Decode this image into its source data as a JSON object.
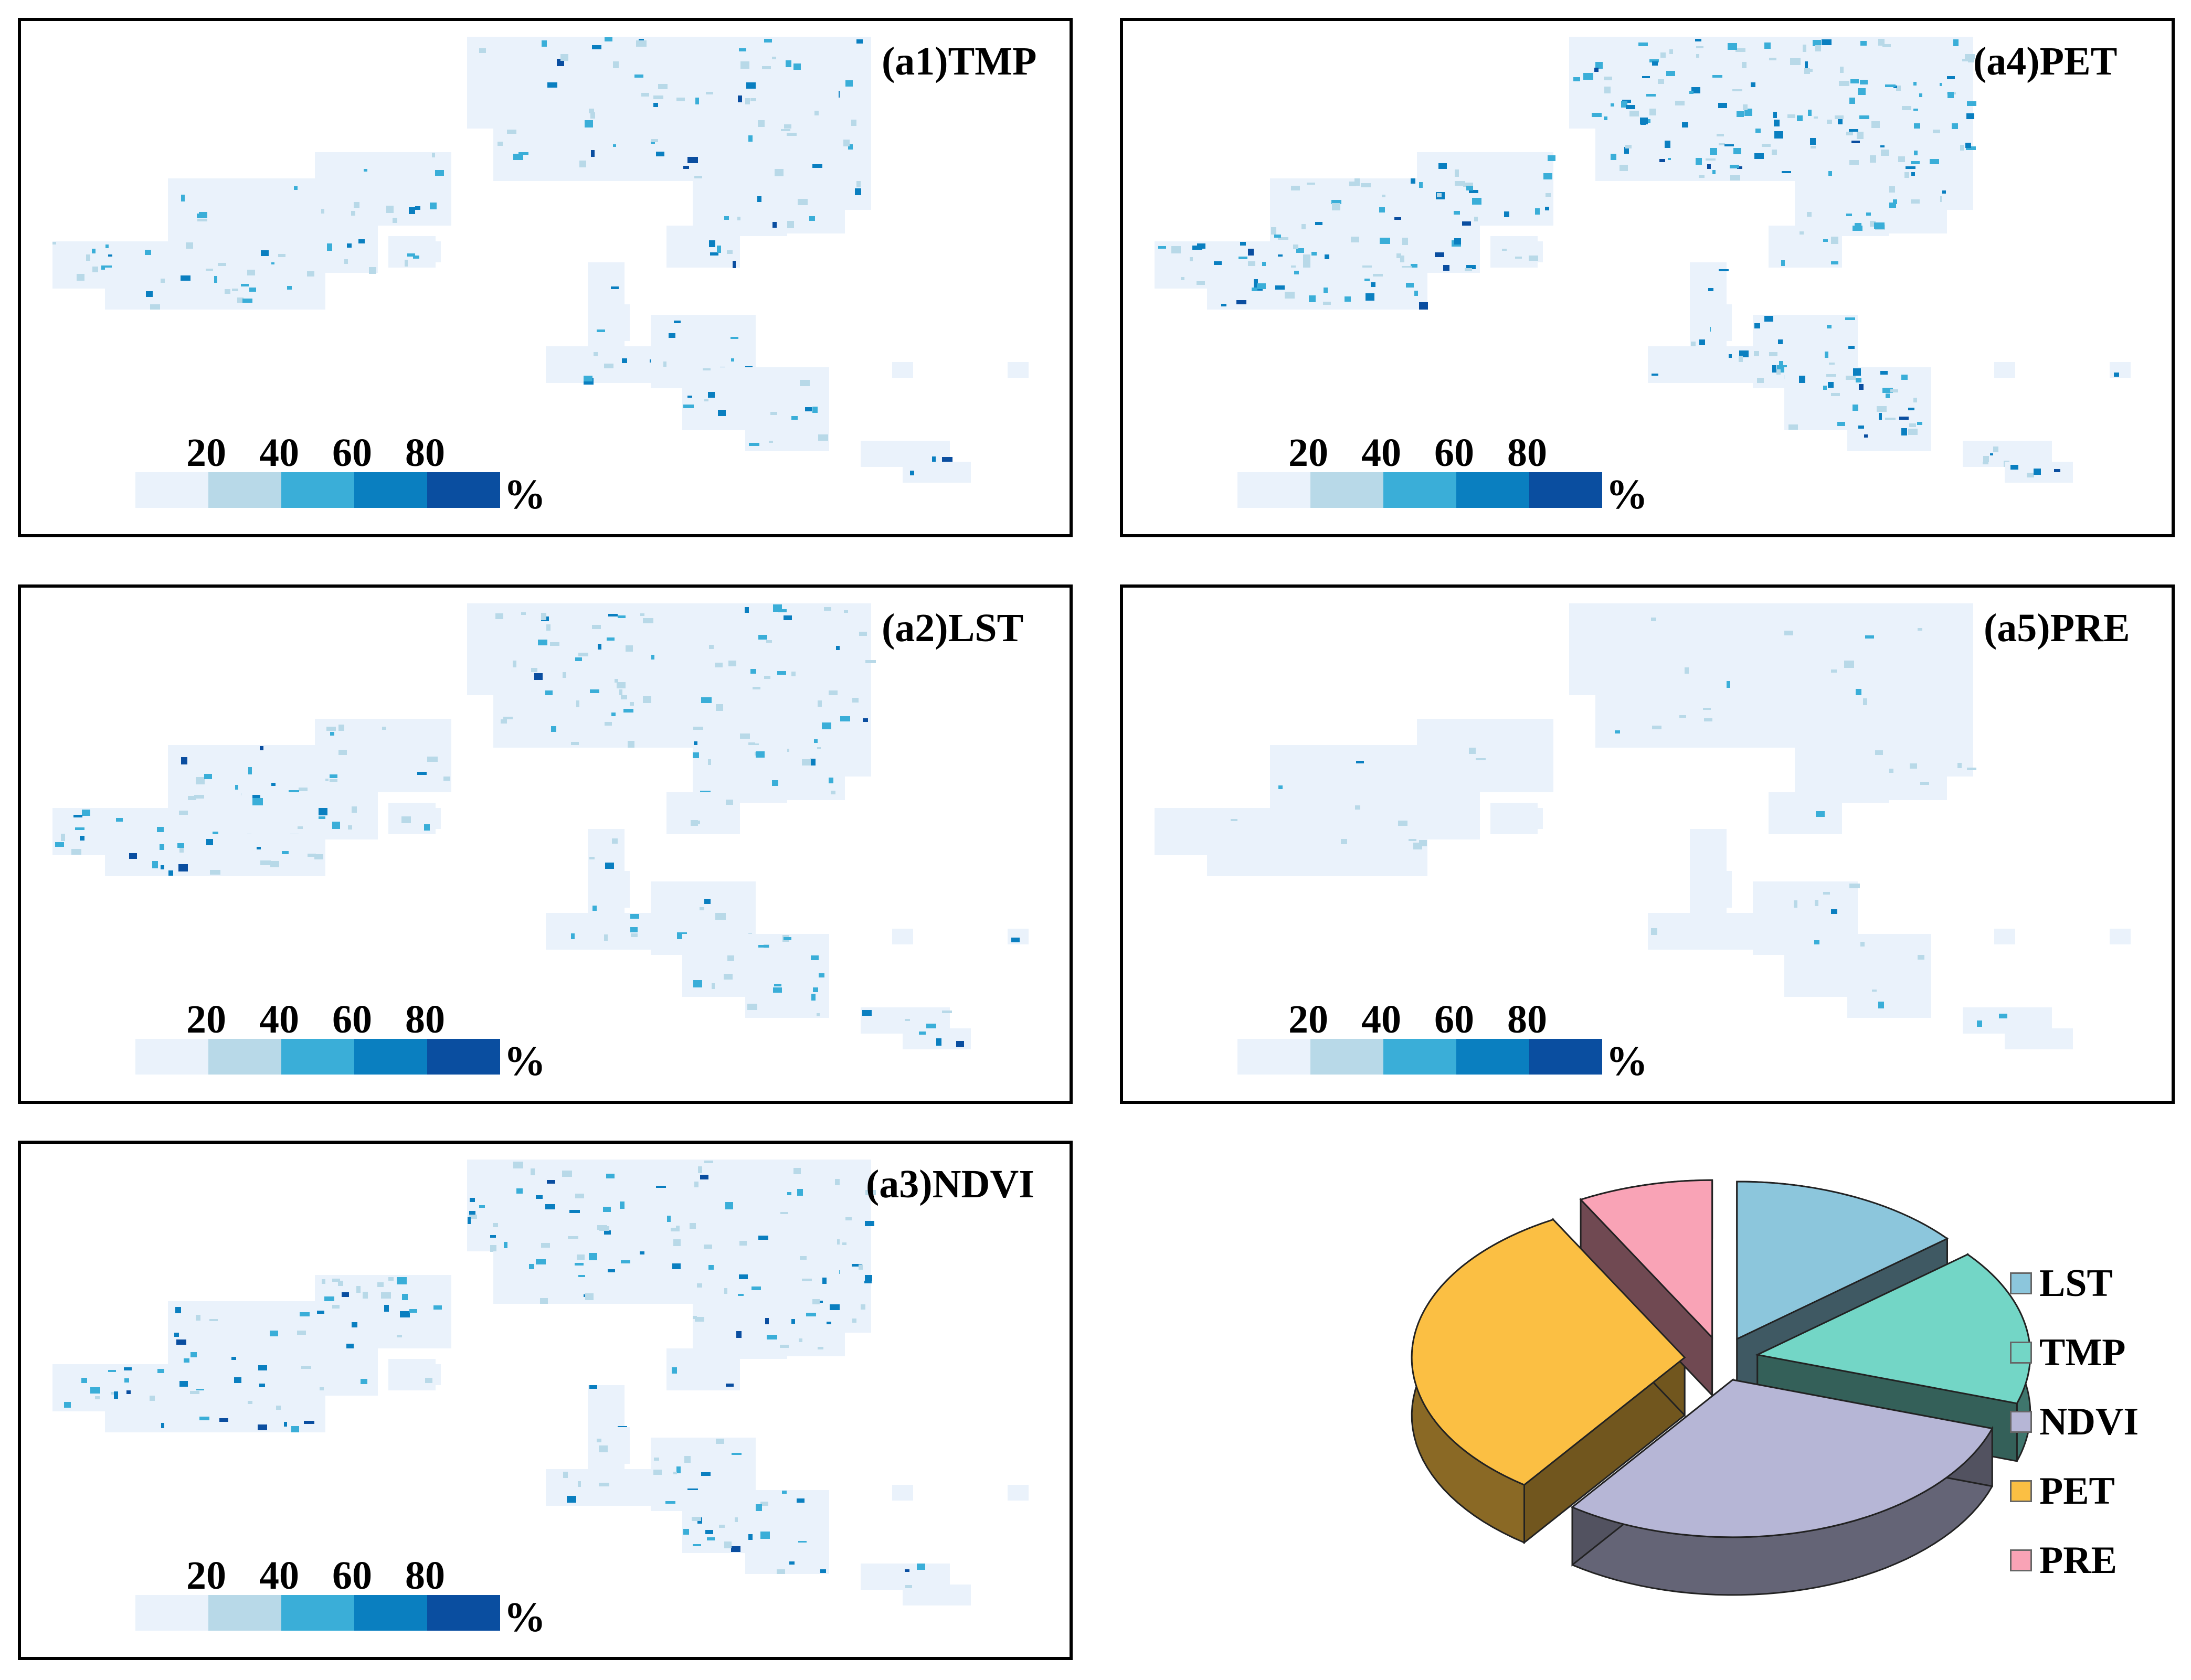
{
  "panels": [
    {
      "id": "a1",
      "title": "(a1)TMP",
      "intensity": "mid-south"
    },
    {
      "id": "a2",
      "title": "(a2)LST",
      "intensity": "north"
    },
    {
      "id": "a3",
      "title": "(a3)NDVI",
      "intensity": "mixed"
    },
    {
      "id": "a4",
      "title": "(a4)PET",
      "intensity": "strong"
    },
    {
      "id": "a5",
      "title": "(a5)PRE",
      "intensity": "weak"
    }
  ],
  "colorbar": {
    "ticks": [
      "20",
      "40",
      "60",
      "80"
    ],
    "unit": "%",
    "colors": [
      "#eaf2fb",
      "#b8d9e8",
      "#3aaed8",
      "#0a7fc0",
      "#0a4ea0"
    ]
  },
  "chart_data": {
    "type": "pie",
    "labels": [
      "LST",
      "TMP",
      "NDVI",
      "PET",
      "PRE"
    ],
    "values": [
      14,
      16,
      30,
      32,
      8
    ],
    "colors": [
      "#8cc6dc",
      "#73d6c6",
      "#b6b6d6",
      "#fbbf43",
      "#f9a3b6"
    ],
    "legend": "right"
  }
}
